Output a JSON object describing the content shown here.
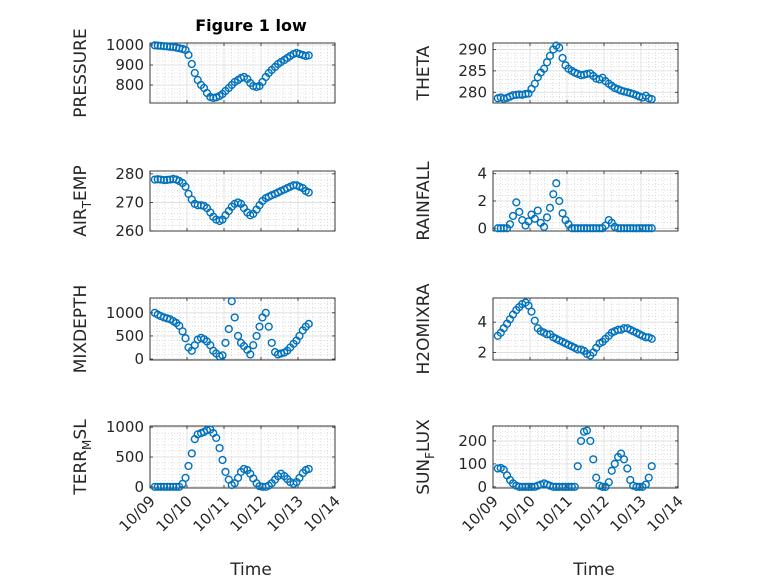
{
  "figure": {
    "title": "Figure 1 low",
    "xlabel": "Time",
    "series_color": "#0072BD",
    "x_ticks": [
      "10/09",
      "10/10",
      "10/11",
      "10/12",
      "10/13",
      "10/14"
    ]
  },
  "chart_data": [
    {
      "type": "scatter",
      "ylabel": "PRESSURE",
      "ylabel_main": "PRESSURE",
      "ylabel_sub": "",
      "ylabel_rest": "",
      "xlim": [
        9.0,
        14.0
      ],
      "ylim": [
        710,
        1010
      ],
      "yticks": [
        800,
        900,
        1000
      ],
      "grid": true,
      "x": [
        9.13,
        9.21,
        9.29,
        9.38,
        9.46,
        9.54,
        9.63,
        9.71,
        9.79,
        9.88,
        9.96,
        10.04,
        10.13,
        10.21,
        10.29,
        10.38,
        10.46,
        10.54,
        10.63,
        10.71,
        10.79,
        10.88,
        10.96,
        11.04,
        11.13,
        11.21,
        11.29,
        11.38,
        11.46,
        11.54,
        11.63,
        11.71,
        11.79,
        11.88,
        11.96,
        12.04,
        12.13,
        12.21,
        12.29,
        12.38,
        12.46,
        12.54,
        12.63,
        12.71,
        12.79,
        12.88,
        12.96,
        13.04,
        13.13,
        13.21,
        13.29
      ],
      "y": [
        998,
        997,
        996,
        994,
        993,
        991,
        990,
        987,
        984,
        980,
        975,
        950,
        905,
        860,
        825,
        800,
        785,
        760,
        740,
        735,
        738,
        745,
        755,
        770,
        785,
        800,
        815,
        825,
        835,
        840,
        830,
        810,
        795,
        790,
        795,
        815,
        840,
        860,
        875,
        890,
        905,
        915,
        925,
        935,
        945,
        955,
        960,
        955,
        950,
        945,
        948
      ]
    },
    {
      "type": "scatter",
      "ylabel": "THETA",
      "ylabel_main": "THETA",
      "ylabel_sub": "",
      "ylabel_rest": "",
      "xlim": [
        9.0,
        14.0
      ],
      "ylim": [
        277.5,
        291.5
      ],
      "yticks": [
        280,
        285,
        290
      ],
      "grid": true,
      "x": [
        9.13,
        9.21,
        9.29,
        9.38,
        9.46,
        9.54,
        9.63,
        9.71,
        9.79,
        9.88,
        9.96,
        10.04,
        10.13,
        10.21,
        10.29,
        10.38,
        10.46,
        10.54,
        10.63,
        10.71,
        10.79,
        10.88,
        10.96,
        11.04,
        11.13,
        11.21,
        11.29,
        11.38,
        11.46,
        11.54,
        11.63,
        11.71,
        11.79,
        11.88,
        11.96,
        12.04,
        12.13,
        12.21,
        12.29,
        12.38,
        12.46,
        12.54,
        12.63,
        12.71,
        12.79,
        12.88,
        12.96,
        13.04,
        13.13,
        13.21,
        13.29
      ],
      "y": [
        278.6,
        278.8,
        278.5,
        278.7,
        279.0,
        279.3,
        279.4,
        279.5,
        279.4,
        279.6,
        279.7,
        280.8,
        282.0,
        283.5,
        284.6,
        285.5,
        287.0,
        288.5,
        290.0,
        290.9,
        290.4,
        288.0,
        286.3,
        285.5,
        285.0,
        284.6,
        284.3,
        284.0,
        284.1,
        284.3,
        284.4,
        283.8,
        283.2,
        283.0,
        283.4,
        282.6,
        282.0,
        281.5,
        281.0,
        280.7,
        280.4,
        280.2,
        280.0,
        279.8,
        279.6,
        279.3,
        279.0,
        278.8,
        279.2,
        278.6,
        278.4
      ]
    },
    {
      "type": "scatter",
      "ylabel": "AIR_TEMP",
      "ylabel_main": "AIR",
      "ylabel_sub": "T",
      "ylabel_rest": "EMP",
      "xlim": [
        9.0,
        14.0
      ],
      "ylim": [
        260,
        281
      ],
      "yticks": [
        260,
        270,
        280
      ],
      "grid": true,
      "x": [
        9.13,
        9.21,
        9.29,
        9.38,
        9.46,
        9.54,
        9.63,
        9.71,
        9.79,
        9.88,
        9.96,
        10.04,
        10.13,
        10.21,
        10.29,
        10.38,
        10.46,
        10.54,
        10.63,
        10.71,
        10.79,
        10.88,
        10.96,
        11.04,
        11.13,
        11.21,
        11.29,
        11.38,
        11.46,
        11.54,
        11.63,
        11.71,
        11.79,
        11.88,
        11.96,
        12.04,
        12.13,
        12.21,
        12.29,
        12.38,
        12.46,
        12.54,
        12.63,
        12.71,
        12.79,
        12.88,
        12.96,
        13.04,
        13.13,
        13.21,
        13.29
      ],
      "y": [
        278.0,
        278.1,
        278.0,
        277.8,
        277.9,
        278.0,
        278.2,
        278.0,
        277.5,
        276.8,
        275.5,
        273.0,
        271.0,
        269.5,
        269.0,
        269.0,
        268.8,
        268.0,
        266.5,
        265.0,
        264.0,
        263.5,
        264.0,
        265.5,
        267.0,
        268.5,
        269.5,
        270.0,
        269.5,
        268.0,
        266.5,
        265.5,
        266.0,
        267.5,
        269.0,
        270.5,
        271.5,
        272.0,
        272.5,
        273.0,
        273.5,
        274.0,
        274.5,
        275.0,
        275.5,
        276.0,
        276.0,
        275.5,
        275.0,
        274.0,
        273.5
      ]
    },
    {
      "type": "scatter",
      "ylabel": "RAINFALL",
      "ylabel_main": "RAINFALL",
      "ylabel_sub": "",
      "ylabel_rest": "",
      "xlim": [
        9.0,
        14.0
      ],
      "ylim": [
        -0.2,
        4.2
      ],
      "yticks": [
        0,
        2,
        4
      ],
      "grid": true,
      "x": [
        9.13,
        9.21,
        9.29,
        9.38,
        9.46,
        9.54,
        9.63,
        9.71,
        9.79,
        9.88,
        9.96,
        10.04,
        10.13,
        10.21,
        10.29,
        10.38,
        10.46,
        10.54,
        10.63,
        10.71,
        10.79,
        10.88,
        10.96,
        11.04,
        11.13,
        11.21,
        11.29,
        11.38,
        11.46,
        11.54,
        11.63,
        11.71,
        11.79,
        11.88,
        11.96,
        12.04,
        12.13,
        12.21,
        12.29,
        12.38,
        12.46,
        12.54,
        12.63,
        12.71,
        12.79,
        12.88,
        12.96,
        13.04,
        13.13,
        13.21,
        13.29
      ],
      "y": [
        0,
        0,
        0,
        0,
        0.3,
        0.9,
        1.9,
        1.2,
        0.6,
        0.2,
        0.5,
        1.0,
        0.7,
        1.3,
        0.4,
        0.1,
        0.8,
        1.5,
        2.5,
        3.3,
        2.0,
        1.1,
        0.6,
        0.3,
        0,
        0,
        0,
        0,
        0,
        0,
        0,
        0,
        0,
        0,
        0,
        0.2,
        0.6,
        0.4,
        0.1,
        0,
        0,
        0,
        0,
        0,
        0,
        0,
        0,
        0,
        0,
        0,
        0
      ]
    },
    {
      "type": "scatter",
      "ylabel": "MIXDEPTH",
      "ylabel_main": "MIXDEPTH",
      "ylabel_sub": "",
      "ylabel_rest": "",
      "xlim": [
        9.0,
        14.0
      ],
      "ylim": [
        -20,
        1320
      ],
      "yticks": [
        0,
        500,
        1000
      ],
      "grid": true,
      "x": [
        9.13,
        9.21,
        9.29,
        9.38,
        9.46,
        9.54,
        9.63,
        9.71,
        9.79,
        9.88,
        9.96,
        10.04,
        10.13,
        10.21,
        10.29,
        10.38,
        10.46,
        10.54,
        10.63,
        10.71,
        10.79,
        10.88,
        10.96,
        11.04,
        11.13,
        11.21,
        11.29,
        11.38,
        11.46,
        11.54,
        11.63,
        11.71,
        11.79,
        11.88,
        11.96,
        12.04,
        12.13,
        12.21,
        12.29,
        12.38,
        12.46,
        12.54,
        12.63,
        12.71,
        12.79,
        12.88,
        12.96,
        13.04,
        13.13,
        13.21,
        13.29
      ],
      "y": [
        1000,
        960,
        930,
        900,
        880,
        860,
        820,
        780,
        720,
        600,
        450,
        250,
        180,
        300,
        420,
        460,
        430,
        380,
        300,
        180,
        120,
        60,
        80,
        350,
        650,
        1250,
        900,
        500,
        350,
        280,
        200,
        100,
        300,
        500,
        700,
        900,
        1000,
        700,
        350,
        150,
        100,
        120,
        140,
        180,
        250,
        330,
        400,
        500,
        620,
        700,
        760
      ]
    },
    {
      "type": "scatter",
      "ylabel": "H2OMIXRA",
      "ylabel_main": "H2OMIXRA",
      "ylabel_sub": "",
      "ylabel_rest": "",
      "xlim": [
        9.0,
        14.0
      ],
      "ylim": [
        1.5,
        5.6
      ],
      "yticks": [
        2,
        4
      ],
      "grid": true,
      "x": [
        9.13,
        9.21,
        9.29,
        9.38,
        9.46,
        9.54,
        9.63,
        9.71,
        9.79,
        9.88,
        9.96,
        10.04,
        10.13,
        10.21,
        10.29,
        10.38,
        10.46,
        10.54,
        10.63,
        10.71,
        10.79,
        10.88,
        10.96,
        11.04,
        11.13,
        11.21,
        11.29,
        11.38,
        11.46,
        11.54,
        11.63,
        11.71,
        11.79,
        11.88,
        11.96,
        12.04,
        12.13,
        12.21,
        12.29,
        12.38,
        12.46,
        12.54,
        12.63,
        12.71,
        12.79,
        12.88,
        12.96,
        13.04,
        13.13,
        13.21,
        13.29
      ],
      "y": [
        3.1,
        3.3,
        3.6,
        3.9,
        4.2,
        4.5,
        4.8,
        5.0,
        5.2,
        5.3,
        5.1,
        4.7,
        4.1,
        3.6,
        3.4,
        3.3,
        3.2,
        3.2,
        3.0,
        2.9,
        2.8,
        2.7,
        2.6,
        2.5,
        2.4,
        2.3,
        2.2,
        2.2,
        2.1,
        1.9,
        1.8,
        2.0,
        2.3,
        2.6,
        2.7,
        2.9,
        3.1,
        3.3,
        3.4,
        3.5,
        3.5,
        3.6,
        3.6,
        3.5,
        3.4,
        3.3,
        3.2,
        3.1,
        3.0,
        3.0,
        2.9
      ]
    },
    {
      "type": "scatter",
      "ylabel": "TERR_MSL",
      "ylabel_main": "TERR",
      "ylabel_sub": "M",
      "ylabel_rest": "SL",
      "xlim": [
        9.0,
        14.0
      ],
      "ylim": [
        -20,
        1020
      ],
      "yticks": [
        0,
        500,
        1000
      ],
      "grid": true,
      "x": [
        9.13,
        9.21,
        9.29,
        9.38,
        9.46,
        9.54,
        9.63,
        9.71,
        9.79,
        9.88,
        9.96,
        10.04,
        10.13,
        10.21,
        10.29,
        10.38,
        10.46,
        10.54,
        10.63,
        10.71,
        10.79,
        10.88,
        10.96,
        11.04,
        11.13,
        11.21,
        11.29,
        11.38,
        11.46,
        11.54,
        11.63,
        11.71,
        11.79,
        11.88,
        11.96,
        12.04,
        12.13,
        12.21,
        12.29,
        12.38,
        12.46,
        12.54,
        12.63,
        12.71,
        12.79,
        12.88,
        12.96,
        13.04,
        13.13,
        13.21,
        13.29
      ],
      "y": [
        0,
        0,
        0,
        0,
        0,
        0,
        0,
        0,
        0,
        50,
        150,
        350,
        560,
        800,
        880,
        900,
        920,
        950,
        960,
        900,
        820,
        650,
        450,
        250,
        120,
        30,
        60,
        150,
        250,
        300,
        280,
        220,
        140,
        60,
        10,
        0,
        0,
        20,
        60,
        120,
        180,
        220,
        180,
        130,
        80,
        50,
        80,
        150,
        230,
        280,
        300
      ]
    },
    {
      "type": "scatter",
      "ylabel": "SUN_FLUX",
      "ylabel_main": "SUN",
      "ylabel_sub": "F",
      "ylabel_rest": "LUX",
      "xlim": [
        9.0,
        14.0
      ],
      "ylim": [
        -5,
        265
      ],
      "yticks": [
        0,
        100,
        200
      ],
      "grid": true,
      "x": [
        9.13,
        9.21,
        9.29,
        9.38,
        9.46,
        9.54,
        9.63,
        9.71,
        9.79,
        9.88,
        9.96,
        10.04,
        10.13,
        10.21,
        10.29,
        10.38,
        10.46,
        10.54,
        10.63,
        10.71,
        10.79,
        10.88,
        10.96,
        11.04,
        11.13,
        11.21,
        11.29,
        11.38,
        11.46,
        11.54,
        11.63,
        11.71,
        11.79,
        11.88,
        11.96,
        12.04,
        12.13,
        12.21,
        12.29,
        12.38,
        12.46,
        12.54,
        12.63,
        12.71,
        12.79,
        12.88,
        12.96,
        13.04,
        13.13,
        13.21,
        13.29
      ],
      "y": [
        80,
        82,
        75,
        50,
        30,
        15,
        5,
        0,
        0,
        0,
        0,
        0,
        0,
        5,
        10,
        15,
        10,
        5,
        0,
        0,
        0,
        0,
        0,
        0,
        0,
        0,
        90,
        200,
        240,
        245,
        200,
        120,
        40,
        5,
        0,
        0,
        20,
        70,
        100,
        130,
        145,
        120,
        80,
        30,
        5,
        0,
        0,
        0,
        10,
        40,
        90
      ]
    }
  ]
}
